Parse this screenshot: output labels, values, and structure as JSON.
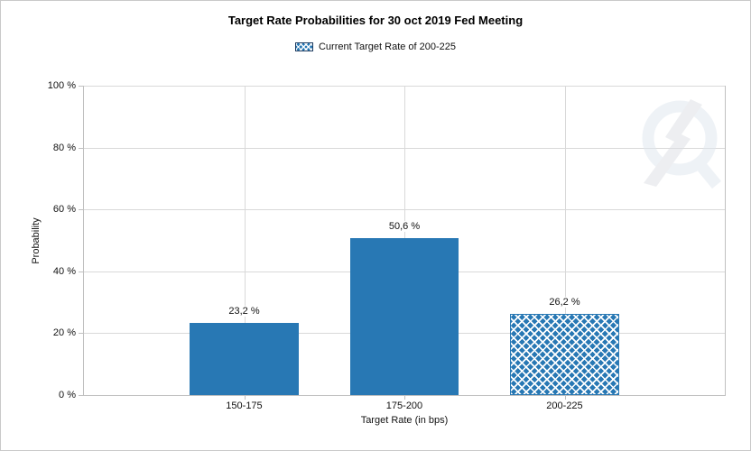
{
  "chart_data": {
    "type": "bar",
    "title": "Target Rate Probabilities for 30 oct 2019 Fed Meeting",
    "categories": [
      "150-175",
      "175-200",
      "200-225"
    ],
    "values": [
      23.2,
      50.6,
      26.2
    ],
    "value_labels": [
      "23,2 %",
      "50,6 %",
      "26,2 %"
    ],
    "bar_patterns": [
      "solid",
      "solid",
      "crosshatch"
    ],
    "xlabel": "Target Rate (in bps)",
    "ylabel": "Probability",
    "ylim": [
      0,
      100
    ],
    "ytick_labels": [
      "0 %",
      "20 %",
      "40 %",
      "60 %",
      "80 %",
      "100 %"
    ],
    "grid": true,
    "legend_position": "top",
    "legend": [
      {
        "label": "Current Target Rate of 200-225",
        "pattern": "crosshatch"
      }
    ],
    "highlighted_category": "200-225"
  },
  "colors": {
    "bar": "#2878b4",
    "legend_swatch_border": "#1b3a5f",
    "gridline": "#d9d9d9",
    "axis": "#c0c0c0",
    "text": "#111111",
    "watermark": "#dde4ed",
    "canvas_border": "#c9c9c9"
  },
  "watermark": {
    "icon": "q-lightning-logo"
  }
}
